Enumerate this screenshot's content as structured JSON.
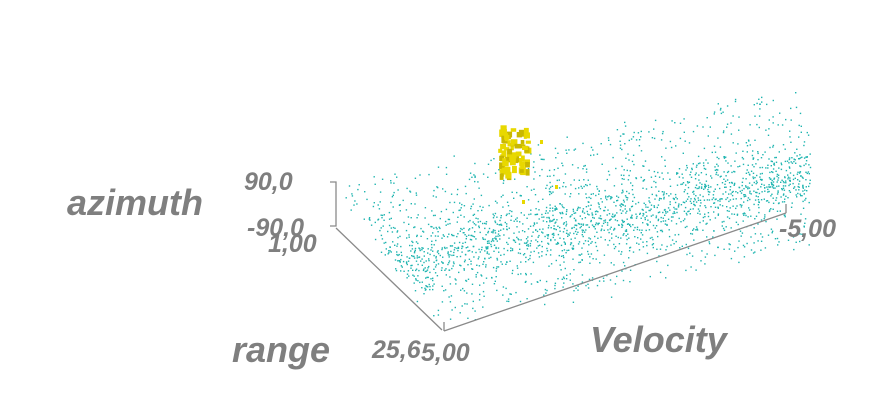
{
  "chart_data": {
    "type": "scatter",
    "projection": "3d",
    "title": "",
    "axes": {
      "x": {
        "label": "Velocity",
        "range": [
          -5.0,
          5.0
        ],
        "tick_labels": [
          "5,00",
          "-5,00"
        ]
      },
      "y": {
        "label": "range",
        "range": [
          1.0,
          25.6
        ],
        "tick_labels": [
          "1,00",
          "25,6"
        ]
      },
      "z": {
        "label": "azimuth",
        "range": [
          -90.0,
          90.0
        ],
        "tick_labels": [
          "90,0",
          "-90,0"
        ]
      }
    },
    "grid": false,
    "legend": "none",
    "series": [
      {
        "kind": "point-cloud",
        "color": "#1fb5b0",
        "distribution": "dense scattered points spanning full velocity and range extent, azimuth near 0",
        "approx_points": 2600
      },
      {
        "kind": "iso-surface-cluster",
        "color": "#e8d800",
        "location": {
          "velocity": 1.5,
          "range": 12.0,
          "azimuth": 40.0
        }
      }
    ]
  }
}
